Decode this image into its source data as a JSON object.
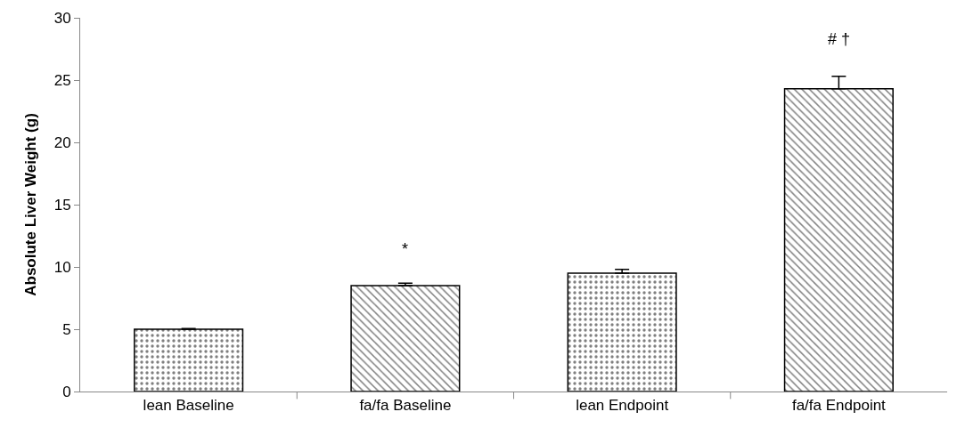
{
  "chart_data": {
    "type": "bar",
    "ylabel": "Absolute Liver Weight (g)",
    "categories": [
      "lean Baseline",
      "fa/fa Baseline",
      "lean Endpoint",
      "fa/fa Endpoint"
    ],
    "values": [
      5.0,
      8.5,
      9.5,
      24.3
    ],
    "errors": [
      [
        5.0,
        5.06
      ],
      [
        8.5,
        8.7
      ],
      [
        9.5,
        9.8
      ],
      [
        24.3,
        25.3
      ]
    ],
    "ylim": [
      0,
      30
    ],
    "yticks": [
      0,
      5,
      10,
      15,
      20,
      25,
      30
    ],
    "annotations": [
      "*",
      "# †"
    ]
  }
}
